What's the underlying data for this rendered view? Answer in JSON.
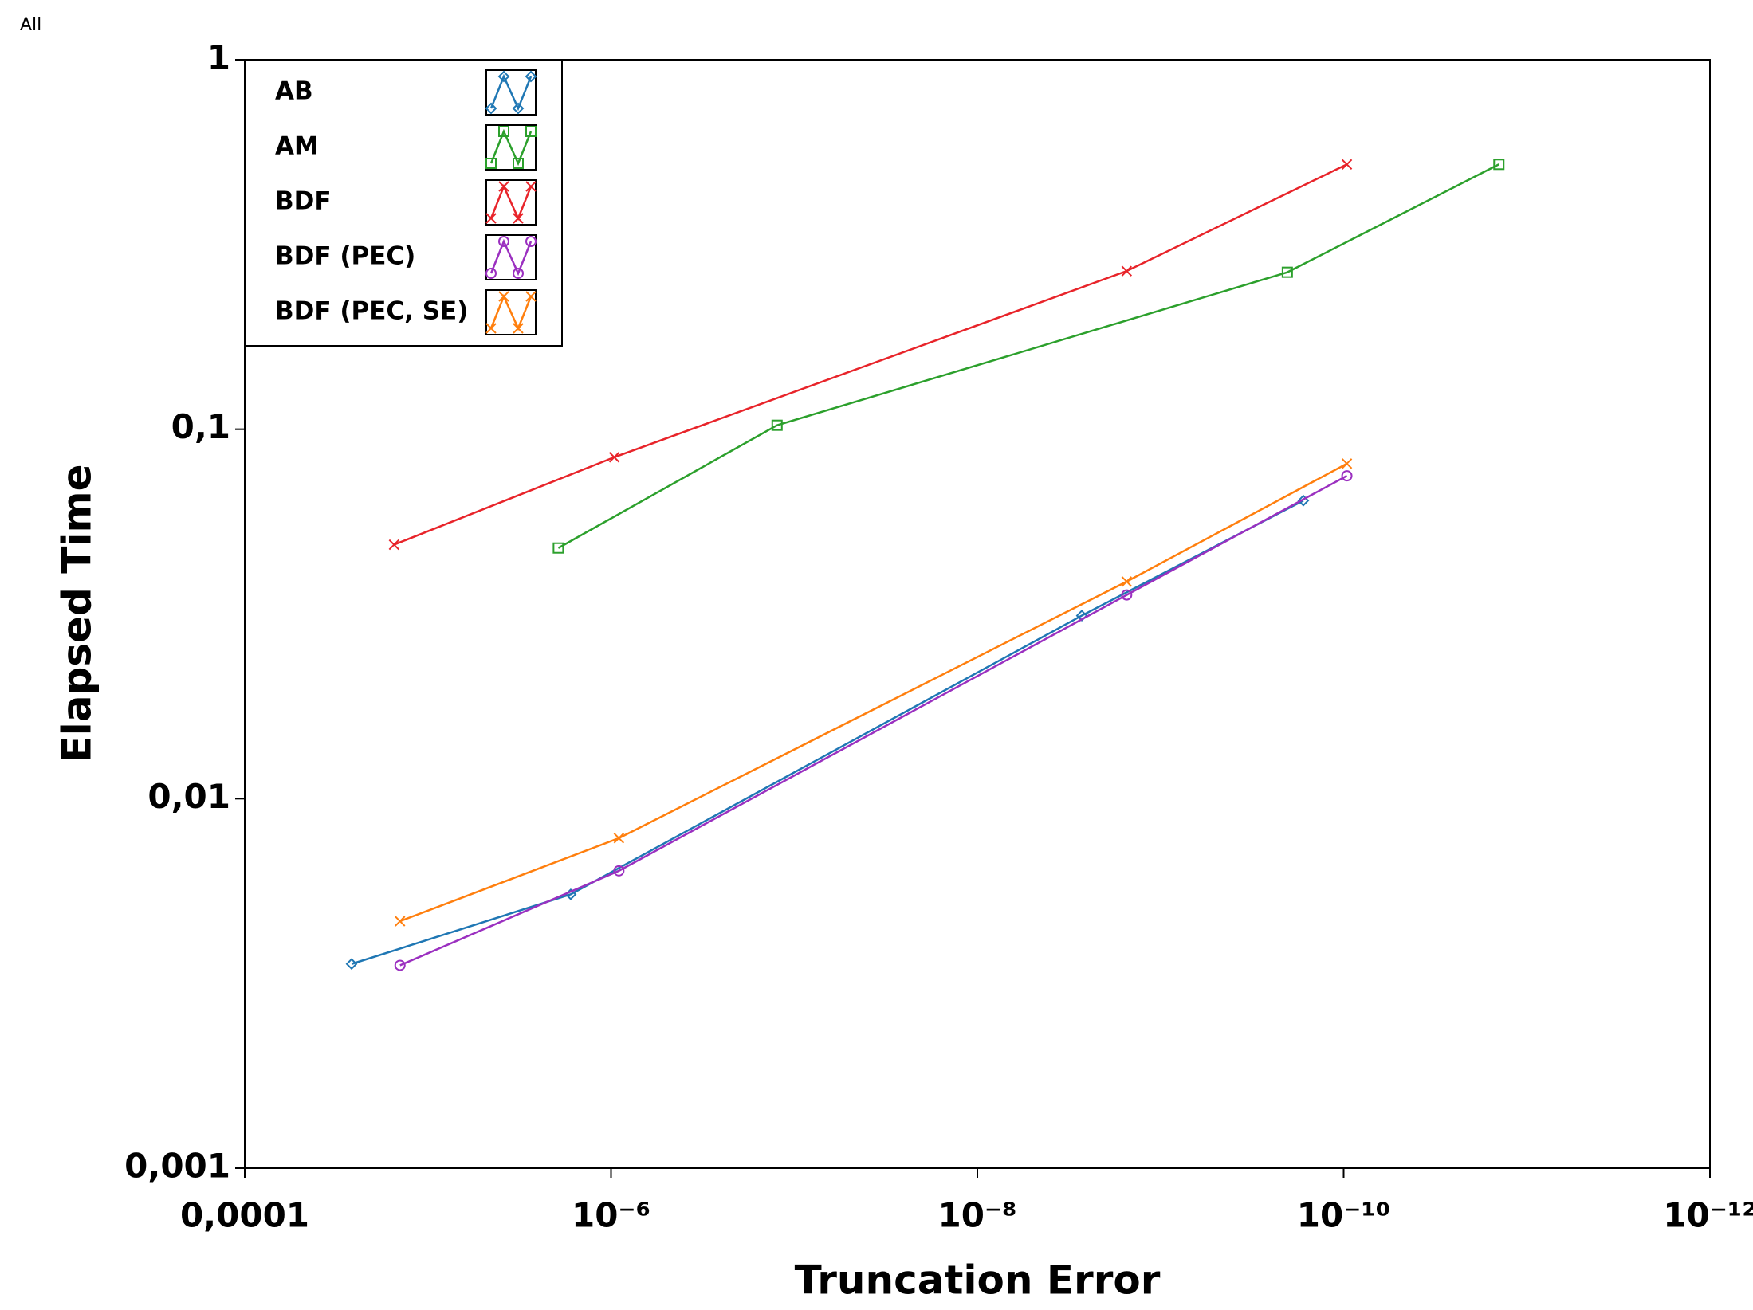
{
  "chart_data": {
    "type": "line",
    "title": "All",
    "x_label": "Truncation Error",
    "y_label": "Elapsed Time",
    "xlog": true,
    "ylog": true,
    "xlim": [
      0.0001,
      1e-12
    ],
    "ylim": [
      0.001,
      1
    ],
    "xticks": [
      {
        "value": 0.0001,
        "label": "0,0001"
      },
      {
        "value": 1e-06,
        "label": "10⁻⁶"
      },
      {
        "value": 1e-08,
        "label": "10⁻⁸"
      },
      {
        "value": 1e-10,
        "label": "10⁻¹⁰"
      },
      {
        "value": 1e-12,
        "label": "10⁻¹²"
      }
    ],
    "yticks": [
      {
        "value": 0.001,
        "label": "0,001"
      },
      {
        "value": 0.01,
        "label": "0,01"
      },
      {
        "value": 0.1,
        "label": "0,1"
      },
      1
    ],
    "legend": "top-left",
    "series": [
      {
        "name": "AB",
        "color": "#1f77b4",
        "marker": "diamond",
        "x": [
          2.61e-05,
          1.66e-06,
          2.69e-09,
          1.66e-10
        ],
        "values": [
          0.00357,
          0.00551,
          0.0313,
          0.0641
        ]
      },
      {
        "name": "AM",
        "color": "#2ca02c",
        "marker": "square",
        "x": [
          1.94e-06,
          1.24e-07,
          2.03e-10,
          1.42e-11
        ],
        "values": [
          0.0477,
          0.1025,
          0.266,
          0.521
        ]
      },
      {
        "name": "BDF",
        "color": "#e8242a",
        "marker": "x",
        "x": [
          1.53e-05,
          9.6e-07,
          1.53e-09,
          9.6e-11
        ],
        "values": [
          0.0487,
          0.084,
          0.268,
          0.521
        ]
      },
      {
        "name": "BDF (PEC)",
        "color": "#9b30c0",
        "marker": "circle",
        "x": [
          1.42e-05,
          9.06e-07,
          1.53e-09,
          9.6e-11
        ],
        "values": [
          0.00354,
          0.00638,
          0.0356,
          0.0748
        ]
      },
      {
        "name": "BDF (PEC, SE)",
        "color": "#ff7f0e",
        "marker": "x",
        "x": [
          1.42e-05,
          9.06e-07,
          1.53e-09,
          9.6e-11
        ],
        "values": [
          0.00466,
          0.00782,
          0.0387,
          0.0807
        ]
      }
    ]
  }
}
